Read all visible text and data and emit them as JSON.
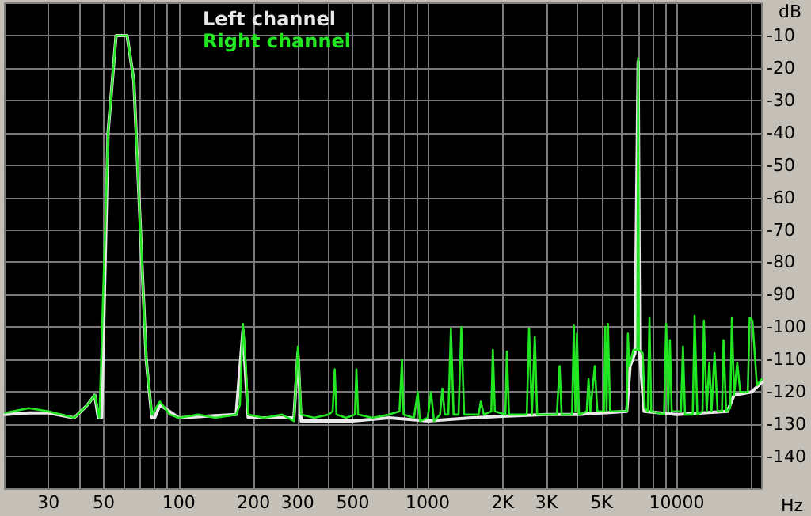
{
  "chart_data": {
    "type": "line",
    "xlabel": "Hz",
    "ylabel": "dB",
    "log": "x",
    "grid": true,
    "legend": "top left",
    "marker": "none",
    "line_style": "solid",
    "xlim": [
      20,
      22000
    ],
    "ylim": [
      -150,
      0
    ],
    "xticks": [
      {
        "value": 20,
        "label": null
      },
      30,
      {
        "value": 40,
        "label": null
      },
      50,
      {
        "value": 60,
        "label": null
      },
      {
        "value": 70,
        "label": null
      },
      {
        "value": 80,
        "label": null
      },
      {
        "value": 90,
        "label": null
      },
      100,
      200,
      300,
      {
        "value": 400,
        "label": null
      },
      500,
      {
        "value": 600,
        "label": null
      },
      {
        "value": 700,
        "label": null
      },
      {
        "value": 800,
        "label": null
      },
      {
        "value": 900,
        "label": null
      },
      1000,
      {
        "value": 2000,
        "label": "2K"
      },
      {
        "value": 3000,
        "label": "3K"
      },
      {
        "value": 4000,
        "label": null
      },
      {
        "value": 5000,
        "label": "5K"
      },
      {
        "value": 6000,
        "label": null
      },
      {
        "value": 7000,
        "label": null
      },
      {
        "value": 8000,
        "label": null
      },
      {
        "value": 9000,
        "label": null
      },
      10000,
      {
        "value": 20000,
        "label": null
      }
    ],
    "yticks": [
      -140,
      -130,
      -120,
      -110,
      -100,
      -90,
      -80,
      -70,
      -60,
      -50,
      -40,
      -30,
      -20,
      -10
    ],
    "series": [
      {
        "name": "Left channel",
        "color": "#e8e8e8",
        "x": [
          20,
          25,
          30,
          38,
          43,
          46,
          47.5,
          49,
          52,
          56,
          62,
          66,
          74,
          78,
          80,
          84,
          100,
          170,
          181,
          190,
          290,
          301,
          310,
          500,
          700,
          1000,
          1500,
          2000,
          3000,
          4000,
          5000,
          6300,
          6500,
          6800,
          7000,
          7100,
          7400,
          10000,
          16000,
          17000,
          20000,
          22000
        ],
        "values": [
          -127,
          -126.5,
          -126.5,
          -128,
          -124,
          -121,
          -128,
          -128,
          -40,
          -10,
          -10,
          -24,
          -110,
          -128,
          -128,
          -124,
          -128,
          -127,
          -101,
          -128,
          -128,
          -108,
          -129,
          -129,
          -128,
          -129,
          -128,
          -127.5,
          -127,
          -127,
          -126.5,
          -126,
          -112,
          -108,
          -18,
          -108,
          -126,
          -127,
          -126,
          -121,
          -120,
          -117
        ]
      },
      {
        "name": "Right channel",
        "color": "#22e622",
        "x": [
          20,
          25,
          30,
          38,
          43,
          46,
          48,
          52,
          56,
          62,
          66,
          74,
          78,
          84,
          92,
          100,
          120,
          140,
          170,
          176,
          181,
          186,
          190,
          220,
          260,
          290,
          301,
          310,
          350,
          400,
          415,
          423,
          430,
          470,
          510,
          517,
          525,
          600,
          700,
          770,
          788,
          800,
          880,
          912,
          930,
          1000,
          1030,
          1060,
          1120,
          1145,
          1170,
          1210,
          1239,
          1270,
          1330,
          1364,
          1400,
          1600,
          1633,
          1680,
          1800,
          1826,
          1860,
          2050,
          2080,
          2120,
          2500,
          2553,
          2620,
          2692,
          2750,
          3300,
          3387,
          3450,
          3800,
          3863,
          3920,
          3975,
          4050,
          4350,
          4425,
          4500,
          4688,
          4800,
          5100,
          5166,
          5230,
          5293,
          5400,
          6300,
          6368,
          6450,
          6700,
          6950,
          7000,
          7050,
          7300,
          7450,
          7650,
          7776,
          7900,
          8900,
          9075,
          9250,
          9392,
          9550,
          10400,
          10600,
          10800,
          11600,
          11800,
          12100,
          12700,
          12860,
          13200,
          13520,
          13800,
          14190,
          14600,
          15200,
          15420,
          15800,
          16400,
          16660,
          17000,
          17500,
          18000,
          19300,
          19640,
          20140,
          21000,
          22000
        ],
        "values": [
          -126.5,
          -125,
          -126,
          -128,
          -124,
          -121,
          -128,
          -40,
          -10,
          -10,
          -24,
          -110,
          -127,
          -123,
          -127,
          -128,
          -127,
          -128,
          -127,
          -124,
          -99,
          -112,
          -127,
          -128,
          -127,
          -129,
          -106,
          -127,
          -128,
          -127,
          -126,
          -113,
          -127,
          -128,
          -127,
          -113,
          -127,
          -128,
          -127,
          -126,
          -110,
          -127,
          -128,
          -120,
          -129,
          -128,
          -120,
          -129,
          -127,
          -119,
          -127,
          -127,
          -100.5,
          -127,
          -127,
          -100,
          -127,
          -127,
          -123,
          -127,
          -126,
          -107,
          -126,
          -127,
          -107.5,
          -127,
          -127,
          -100.5,
          -127,
          -103,
          -127,
          -127,
          -112,
          -127,
          -127,
          -99.5,
          -126,
          -102,
          -127,
          -126,
          -116,
          -126,
          -112,
          -126,
          -126,
          -100,
          -126,
          -99,
          -126,
          -126,
          -102,
          -112,
          -107,
          -107,
          -17,
          -107,
          -108,
          -125,
          -126,
          -97,
          -126,
          -127,
          -99,
          -126,
          -104,
          -126,
          -126,
          -106,
          -127,
          -127,
          -96.5,
          -127,
          -126,
          -98,
          -126,
          -111,
          -126,
          -108,
          -126,
          -126,
          -104,
          -126,
          -125,
          -97,
          -121,
          -111,
          -120,
          -120,
          -97,
          -98,
          -118,
          -116
        ]
      }
    ]
  }
}
